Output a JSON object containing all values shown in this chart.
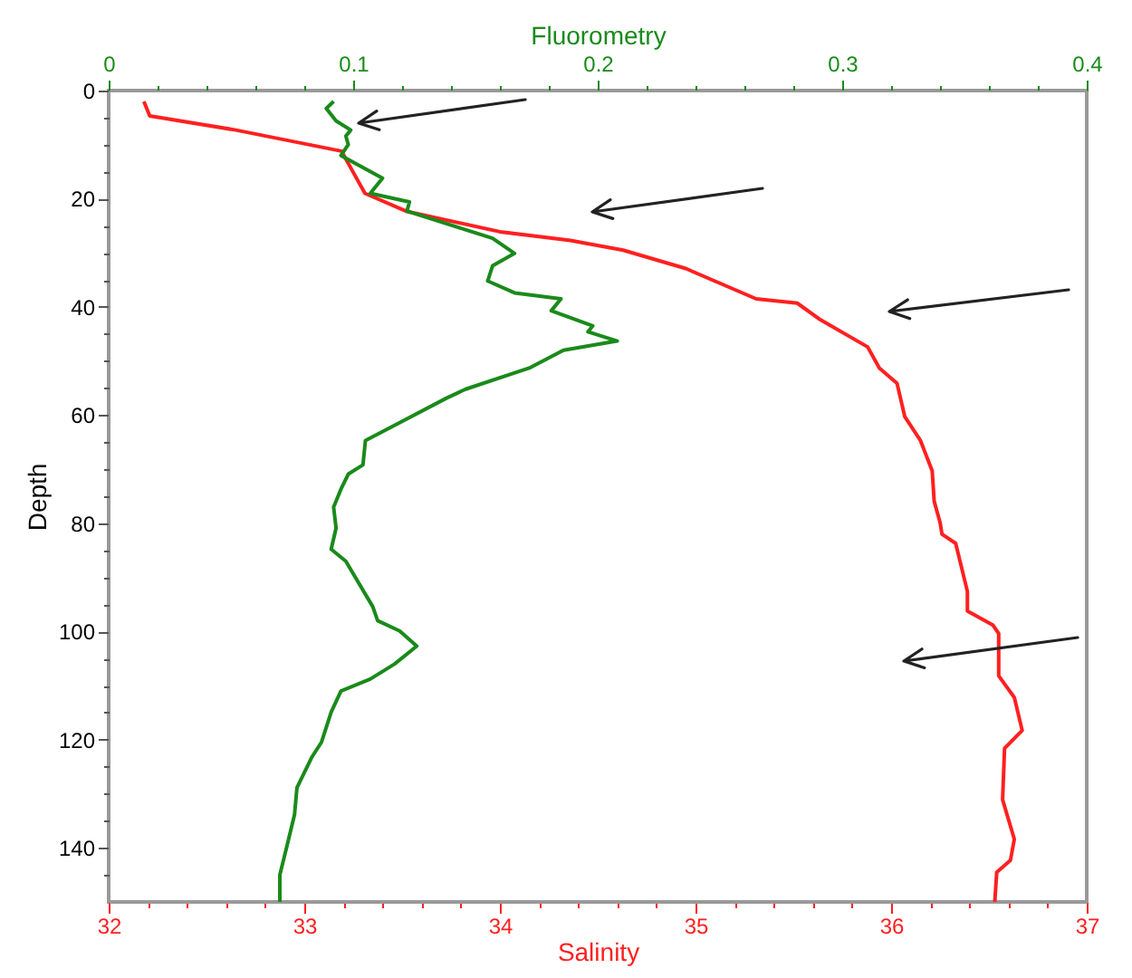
{
  "chart_data": {
    "type": "line",
    "xlabel": "Salinity",
    "x2label": "Fluorometry",
    "ylabel": "Depth",
    "xlim": [
      32,
      37
    ],
    "xticks": [
      32,
      {
        "value": 32.2,
        "label": null
      },
      {
        "value": 32.4,
        "label": null
      },
      {
        "value": 32.6,
        "label": null
      },
      {
        "value": 32.8,
        "label": null
      },
      33,
      {
        "value": 33.2,
        "label": null
      },
      {
        "value": 33.4,
        "label": null
      },
      {
        "value": 33.6,
        "label": null
      },
      {
        "value": 33.8,
        "label": null
      },
      34,
      {
        "value": 34.2,
        "label": null
      },
      {
        "value": 34.4,
        "label": null
      },
      {
        "value": 34.6,
        "label": null
      },
      {
        "value": 34.8,
        "label": null
      },
      35,
      {
        "value": 35.2,
        "label": null
      },
      {
        "value": 35.4,
        "label": null
      },
      {
        "value": 35.6,
        "label": null
      },
      {
        "value": 35.8,
        "label": null
      },
      36,
      {
        "value": 36.2,
        "label": null
      },
      {
        "value": 36.4,
        "label": null
      },
      {
        "value": 36.6,
        "label": null
      },
      {
        "value": 36.8,
        "label": null
      },
      37
    ],
    "x2lim": [
      0,
      0.4
    ],
    "x2ticks": [
      0,
      {
        "value": 0.02,
        "label": null
      },
      {
        "value": 0.04,
        "label": null
      },
      {
        "value": 0.06,
        "label": null
      },
      {
        "value": 0.08,
        "label": null
      },
      0.1,
      {
        "value": 0.12,
        "label": null
      },
      {
        "value": 0.14,
        "label": null
      },
      {
        "value": 0.16,
        "label": null
      },
      {
        "value": 0.18,
        "label": null
      },
      0.2,
      {
        "value": 0.22,
        "label": null
      },
      {
        "value": 0.24,
        "label": null
      },
      {
        "value": 0.26,
        "label": null
      },
      {
        "value": 0.28,
        "label": null
      },
      0.3,
      {
        "value": 0.32,
        "label": null
      },
      {
        "value": 0.34,
        "label": null
      },
      {
        "value": 0.36,
        "label": null
      },
      {
        "value": 0.38,
        "label": null
      },
      0.4
    ],
    "ylim": [
      150,
      0
    ],
    "yticks": [
      0,
      {
        "value": 5,
        "label": null
      },
      {
        "value": 10,
        "label": null
      },
      {
        "value": 15,
        "label": null
      },
      20,
      {
        "value": 25,
        "label": null
      },
      {
        "value": 30,
        "label": null
      },
      {
        "value": 35,
        "label": null
      },
      40,
      {
        "value": 45,
        "label": null
      },
      {
        "value": 50,
        "label": null
      },
      {
        "value": 55,
        "label": null
      },
      60,
      {
        "value": 65,
        "label": null
      },
      {
        "value": 70,
        "label": null
      },
      {
        "value": 75,
        "label": null
      },
      80,
      {
        "value": 85,
        "label": null
      },
      {
        "value": 90,
        "label": null
      },
      {
        "value": 95,
        "label": null
      },
      100,
      {
        "value": 105,
        "label": null
      },
      {
        "value": 110,
        "label": null
      },
      {
        "value": 115,
        "label": null
      },
      120,
      {
        "value": 125,
        "label": null
      },
      {
        "value": 130,
        "label": null
      },
      {
        "value": 135,
        "label": null
      },
      140,
      {
        "value": 145,
        "label": null
      }
    ],
    "grid": false,
    "series": [
      {
        "color": "#ff2020",
        "x": [
          32.18,
          32.21,
          32.65,
          33.19,
          33.31,
          33.52,
          34.0,
          34.36,
          34.63,
          34.95,
          35.31,
          35.52,
          35.64,
          35.88,
          35.94,
          36.03,
          36.07,
          36.15,
          36.21,
          36.22,
          36.25,
          36.26,
          36.33,
          36.39,
          36.39,
          36.52,
          36.55,
          36.55,
          36.63,
          36.67,
          36.58,
          36.57,
          36.63,
          36.61,
          36.54,
          36.53
        ],
        "values": [
          2.0,
          4.7,
          7.3,
          11.2,
          19.0,
          22.3,
          26.1,
          27.7,
          29.5,
          32.9,
          38.5,
          39.3,
          42.4,
          47.4,
          51.3,
          54.1,
          60.3,
          64.7,
          70.3,
          75.9,
          79.8,
          82.0,
          83.7,
          92.6,
          96.2,
          98.8,
          100.4,
          108.2,
          112.2,
          118.3,
          121.6,
          131.1,
          138.4,
          142.3,
          144.5,
          150
        ]
      },
      {
        "color": "#1a8a1a",
        "axis": "x2",
        "x": [
          0.092,
          0.089,
          0.093,
          0.099,
          0.097,
          0.098,
          0.095,
          0.105,
          0.112,
          0.107,
          0.123,
          0.122,
          0.157,
          0.166,
          0.157,
          0.155,
          0.166,
          0.185,
          0.181,
          0.198,
          0.196,
          0.208,
          0.186,
          0.172,
          0.146,
          0.138,
          0.119,
          0.105,
          0.104,
          0.098,
          0.095,
          0.092,
          0.093,
          0.091,
          0.097,
          0.1,
          0.108,
          0.11,
          0.119,
          0.126,
          0.117,
          0.107,
          0.095,
          0.091,
          0.087,
          0.083,
          0.077,
          0.076,
          0.073,
          0.07,
          0.07
        ],
        "values": [
          2.0,
          3.3,
          5.6,
          7.3,
          8.4,
          10.0,
          12.0,
          14.5,
          16.2,
          19.0,
          20.6,
          22.3,
          27.3,
          30.1,
          32.4,
          35.2,
          37.4,
          38.5,
          40.7,
          43.5,
          44.6,
          46.3,
          48.0,
          51.3,
          55.2,
          56.9,
          61.4,
          64.7,
          69.2,
          70.9,
          73.7,
          77.0,
          80.9,
          84.8,
          87.0,
          89.3,
          95.4,
          98.0,
          99.9,
          102.7,
          106.0,
          108.8,
          111.0,
          114.9,
          120.5,
          123.3,
          128.9,
          133.9,
          139.5,
          145.0,
          150
        ]
      }
    ]
  }
}
